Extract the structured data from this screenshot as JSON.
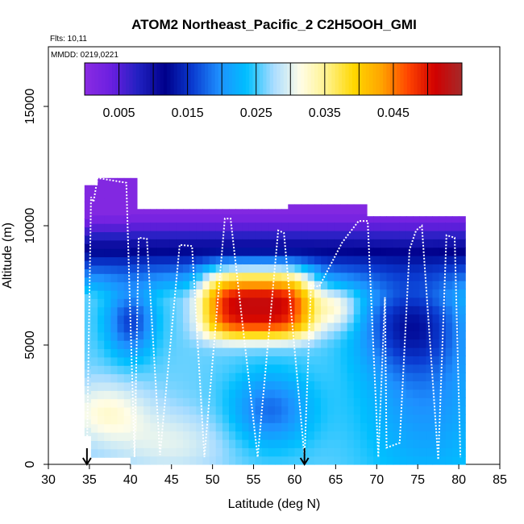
{
  "chart_data": {
    "type": "heatmap",
    "title": "ATOM2 Northeast_Pacific_2 C2H5OOH_GMI",
    "annotations": [
      "Flts: 10,11",
      "MMDD: 0219,0221"
    ],
    "xlabel": "Latitude (deg N)",
    "ylabel": "Altitude (m)",
    "xlim": [
      30,
      85
    ],
    "ylim": [
      0,
      17500
    ],
    "x_ticks": [
      30,
      35,
      40,
      45,
      50,
      55,
      60,
      65,
      70,
      75,
      80,
      85
    ],
    "y_ticks": [
      0,
      5000,
      10000,
      15000
    ],
    "colorbar": {
      "range": [
        0,
        0.055
      ],
      "tick_values": [
        0.005,
        0.015,
        0.025,
        0.035,
        0.045
      ],
      "tick_labels": [
        "0.005",
        "0.015",
        "0.025",
        "0.035",
        "0.045"
      ],
      "colors": [
        "#8a2be2",
        "#6a1fe0",
        "#2020c0",
        "#00008b",
        "#0a3ad0",
        "#1e90ff",
        "#00bfff",
        "#a8dcff",
        "#fffde8",
        "#fff28a",
        "#ffd700",
        "#ffa500",
        "#ff4500",
        "#d10000",
        "#a52a2a"
      ]
    },
    "markers": [
      {
        "x": 34.7,
        "label": "arrow"
      },
      {
        "x": 61.2,
        "label": "arrow"
      }
    ],
    "flight_track": [
      [
        34.7,
        500
      ],
      [
        35.2,
        11200
      ],
      [
        35.5,
        11000
      ],
      [
        36.0,
        12000
      ],
      [
        39.5,
        11800
      ],
      [
        40.5,
        300
      ],
      [
        41.0,
        9500
      ],
      [
        42.0,
        9450
      ],
      [
        43.6,
        400
      ],
      [
        46.0,
        9200
      ],
      [
        47.5,
        9150
      ],
      [
        49.0,
        300
      ],
      [
        51.5,
        10300
      ],
      [
        52.2,
        10300
      ],
      [
        55.5,
        300
      ],
      [
        58.0,
        9800
      ],
      [
        58.7,
        9700
      ],
      [
        61.2,
        300
      ],
      [
        62.0,
        7500
      ],
      [
        63.0,
        7450
      ],
      [
        65.8,
        9300
      ],
      [
        67.8,
        10200
      ],
      [
        68.9,
        10200
      ],
      [
        70.2,
        300
      ],
      [
        71.0,
        7000
      ],
      [
        71.2,
        700
      ],
      [
        72.8,
        900
      ],
      [
        74.0,
        9000
      ],
      [
        74.8,
        9800
      ],
      [
        75.5,
        10000
      ],
      [
        77.5,
        200
      ],
      [
        78.5,
        9600
      ],
      [
        79.5,
        9500
      ],
      [
        80.2,
        300
      ]
    ]
  }
}
